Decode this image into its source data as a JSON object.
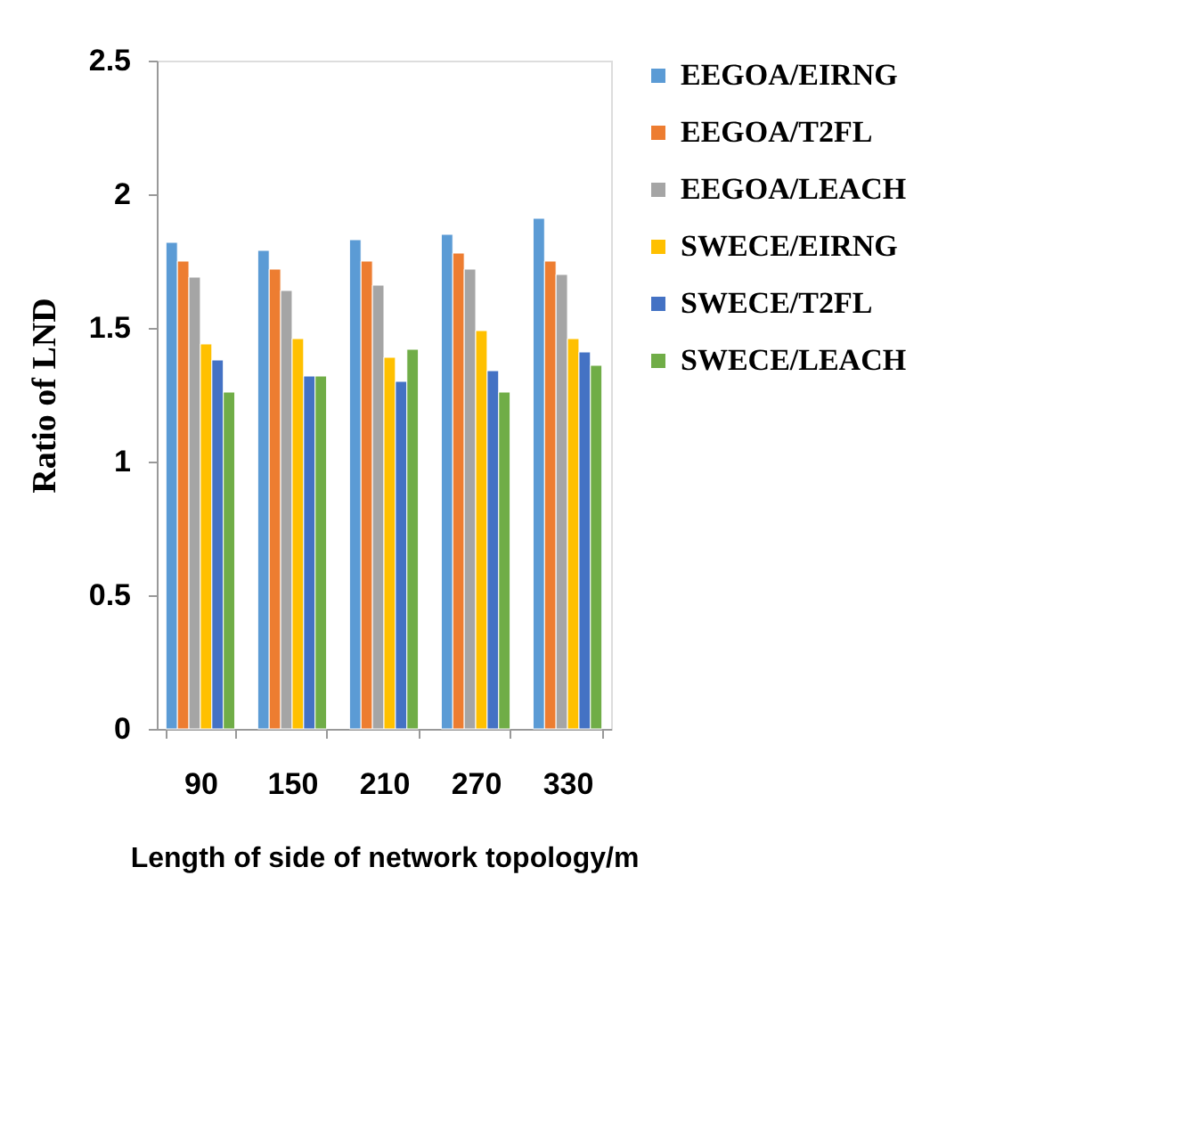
{
  "chart_data": {
    "type": "bar",
    "xlabel": "Length of side of network topology/m",
    "ylabel": "Ratio of LND",
    "categories": [
      "90",
      "150",
      "210",
      "270",
      "330"
    ],
    "series": [
      {
        "name": "EEGOA/EIRNG",
        "color": "#5b9bd5",
        "values": [
          1.82,
          1.79,
          1.83,
          1.85,
          1.91
        ]
      },
      {
        "name": "EEGOA/T2FL",
        "color": "#ed7d31",
        "values": [
          1.75,
          1.72,
          1.75,
          1.78,
          1.75
        ]
      },
      {
        "name": "EEGOA/LEACH",
        "color": "#a5a5a5",
        "values": [
          1.69,
          1.64,
          1.66,
          1.72,
          1.7
        ]
      },
      {
        "name": "SWECE/EIRNG",
        "color": "#ffc000",
        "values": [
          1.44,
          1.46,
          1.39,
          1.49,
          1.46
        ]
      },
      {
        "name": "SWECE/T2FL",
        "color": "#4472c4",
        "values": [
          1.38,
          1.32,
          1.3,
          1.34,
          1.41
        ]
      },
      {
        "name": "SWECE/LEACH",
        "color": "#70ad47",
        "values": [
          1.26,
          1.32,
          1.42,
          1.26,
          1.36
        ]
      }
    ],
    "ylim": [
      0,
      2.5
    ],
    "yticks": [
      0,
      0.5,
      1,
      1.5,
      2,
      2.5
    ],
    "grid": false,
    "legend": "right"
  }
}
